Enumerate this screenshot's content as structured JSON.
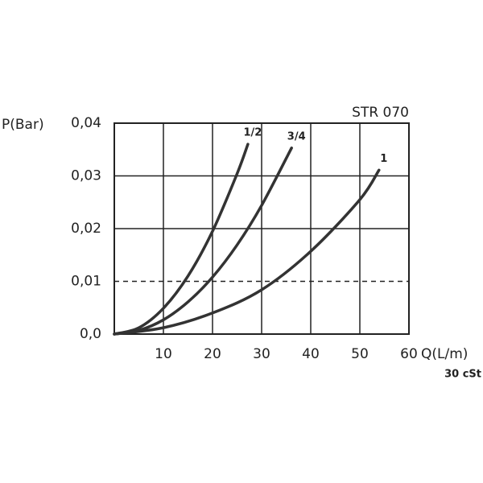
{
  "chart_data": {
    "type": "line",
    "title": "STR 070",
    "y_label": "P(Bar)",
    "x_label": "Q(L/m)",
    "note": "30 cSt",
    "xlim": [
      0,
      60
    ],
    "xticks": [
      10,
      20,
      30,
      40,
      50,
      60
    ],
    "ylim": [
      0,
      0.04
    ],
    "yticks": [
      {
        "value": 0,
        "label": "0,0"
      },
      {
        "value": 0.01,
        "label": "0,01"
      },
      {
        "value": 0.02,
        "label": "0,02"
      },
      {
        "value": 0.03,
        "label": "0,03"
      },
      {
        "value": 0.04,
        "label": "0,04"
      }
    ],
    "grid": true,
    "hline": {
      "y": 0.01,
      "style": "dashed"
    },
    "series": [
      {
        "name": "1/2",
        "color": "#333333",
        "x": [
          0,
          5,
          10,
          15,
          20,
          25,
          27.2
        ],
        "values": [
          0,
          0.0012,
          0.0049,
          0.011,
          0.0195,
          0.0304,
          0.036
        ]
      },
      {
        "name": "3/4",
        "color": "#333333",
        "x": [
          0,
          5,
          10,
          15,
          20,
          25,
          30,
          36.1
        ],
        "values": [
          0,
          0.0007,
          0.0027,
          0.0061,
          0.0108,
          0.0169,
          0.0244,
          0.0353
        ]
      },
      {
        "name": "1",
        "color": "#333333",
        "x": [
          0,
          10,
          20,
          30,
          40,
          50,
          53.9
        ],
        "values": [
          0,
          0.0012,
          0.004,
          0.0084,
          0.0157,
          0.0255,
          0.0311
        ]
      }
    ]
  }
}
